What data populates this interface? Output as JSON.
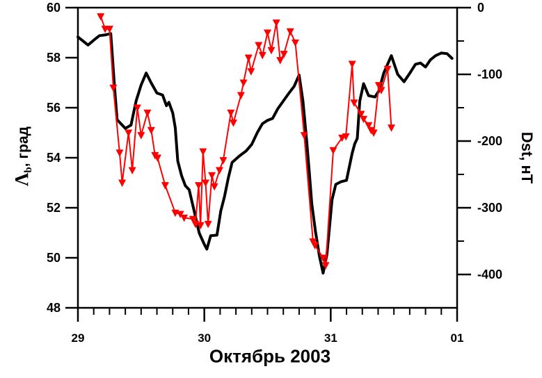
{
  "figure": {
    "xlabel": "Октябрь 2003",
    "left_axis": {
      "label_symbol": "Λ",
      "label_sub": "b",
      "label_rest": ", град",
      "full_label": "Λb, град"
    },
    "right_axis": {
      "label": "Dst, нТ"
    }
  },
  "chart_data": {
    "type": "line",
    "title": "",
    "xlabel": "Октябрь 2003",
    "grid": false,
    "legend": false,
    "x_axis": {
      "tick_labels": [
        "29",
        "30",
        "31",
        "01"
      ],
      "tick_positions": [
        29,
        30,
        31,
        32
      ],
      "range": [
        29,
        32
      ],
      "minor_tick_step": 0.125
    },
    "left_y_axis": {
      "label": "Λb, град",
      "range": [
        48,
        60
      ],
      "tick_labels": [
        "60",
        "58",
        "56",
        "54",
        "52",
        "50",
        "48"
      ],
      "ticks": [
        60,
        58,
        56,
        54,
        52,
        50,
        48
      ]
    },
    "right_y_axis": {
      "label": "Dst, нТ",
      "range": [
        -450,
        0
      ],
      "tick_labels": [
        "0",
        "-100",
        "-200",
        "-300",
        "-400"
      ],
      "ticks": [
        0,
        -100,
        -200,
        -300,
        -400
      ],
      "minor_ticks": [
        -50,
        -150,
        -250,
        -350
      ]
    },
    "series": [
      {
        "name": "Dst",
        "axis": "right",
        "color": "#000000",
        "line_width": 4,
        "marker": "none",
        "points": [
          [
            29.0,
            -44
          ],
          [
            29.04,
            -50
          ],
          [
            29.08,
            -56
          ],
          [
            29.13,
            -48
          ],
          [
            29.17,
            -42
          ],
          [
            29.21,
            -41
          ],
          [
            29.26,
            -39
          ],
          [
            29.29,
            -120
          ],
          [
            29.31,
            -168
          ],
          [
            29.375,
            -181
          ],
          [
            29.42,
            -176
          ],
          [
            29.46,
            -140
          ],
          [
            29.5,
            -116
          ],
          [
            29.54,
            -98
          ],
          [
            29.58,
            -113
          ],
          [
            29.625,
            -128
          ],
          [
            29.67,
            -131
          ],
          [
            29.7,
            -147
          ],
          [
            29.72,
            -142
          ],
          [
            29.75,
            -158
          ],
          [
            29.77,
            -180
          ],
          [
            29.79,
            -230
          ],
          [
            29.82,
            -252
          ],
          [
            29.85,
            -267
          ],
          [
            29.88,
            -273
          ],
          [
            29.92,
            -305
          ],
          [
            29.96,
            -338
          ],
          [
            30.0,
            -355
          ],
          [
            30.02,
            -362
          ],
          [
            30.05,
            -342
          ],
          [
            30.1,
            -341
          ],
          [
            30.13,
            -305
          ],
          [
            30.16,
            -283
          ],
          [
            30.19,
            -255
          ],
          [
            30.22,
            -232
          ],
          [
            30.28,
            -222
          ],
          [
            30.33,
            -215
          ],
          [
            30.375,
            -205
          ],
          [
            30.42,
            -187
          ],
          [
            30.46,
            -174
          ],
          [
            30.5,
            -169
          ],
          [
            30.54,
            -166
          ],
          [
            30.58,
            -152
          ],
          [
            30.625,
            -140
          ],
          [
            30.67,
            -128
          ],
          [
            30.71,
            -118
          ],
          [
            30.75,
            -101
          ],
          [
            30.78,
            -140
          ],
          [
            30.81,
            -200
          ],
          [
            30.83,
            -245
          ],
          [
            30.85,
            -294
          ],
          [
            30.88,
            -336
          ],
          [
            30.91,
            -372
          ],
          [
            30.94,
            -398
          ],
          [
            30.97,
            -370
          ],
          [
            30.99,
            -330
          ],
          [
            31.01,
            -288
          ],
          [
            31.04,
            -265
          ],
          [
            31.08,
            -261
          ],
          [
            31.125,
            -259
          ],
          [
            31.17,
            -218
          ],
          [
            31.19,
            -204
          ],
          [
            31.21,
            -196
          ],
          [
            31.23,
            -140
          ],
          [
            31.26,
            -114
          ],
          [
            31.3,
            -132
          ],
          [
            31.35,
            -134
          ],
          [
            31.38,
            -125
          ],
          [
            31.42,
            -98
          ],
          [
            31.48,
            -72
          ],
          [
            31.53,
            -100
          ],
          [
            31.58,
            -111
          ],
          [
            31.63,
            -97
          ],
          [
            31.67,
            -85
          ],
          [
            31.71,
            -83
          ],
          [
            31.75,
            -89
          ],
          [
            31.79,
            -78
          ],
          [
            31.83,
            -72
          ],
          [
            31.875,
            -68
          ],
          [
            31.92,
            -69
          ],
          [
            31.96,
            -76
          ]
        ]
      },
      {
        "name": "Λb",
        "axis": "left",
        "color": "#ff0000",
        "line_width": 2,
        "marker": "triangle-down",
        "points": [
          [
            29.18,
            59.65
          ],
          [
            29.215,
            59.15
          ],
          [
            29.25,
            59.15
          ],
          [
            29.28,
            56.8
          ],
          [
            29.33,
            54.2
          ],
          [
            29.35,
            53.0
          ],
          [
            29.4,
            55.0
          ],
          [
            29.43,
            53.5
          ],
          [
            29.47,
            56.0
          ],
          [
            29.5,
            54.9
          ],
          [
            29.55,
            55.8
          ],
          [
            29.58,
            55.1
          ],
          [
            29.61,
            54.1
          ],
          [
            29.63,
            54.0
          ],
          [
            29.69,
            52.9
          ],
          [
            29.77,
            51.8
          ],
          [
            29.81,
            51.75
          ],
          [
            29.84,
            51.6
          ],
          [
            29.91,
            51.55
          ],
          [
            29.93,
            51.35
          ],
          [
            29.955,
            52.9
          ],
          [
            29.97,
            51.3
          ],
          [
            29.99,
            54.25
          ],
          [
            30.01,
            53.0
          ],
          [
            30.03,
            51.35
          ],
          [
            30.06,
            53.3
          ],
          [
            30.08,
            52.85
          ],
          [
            30.12,
            53.5
          ],
          [
            30.15,
            53.9
          ],
          [
            30.21,
            55.8
          ],
          [
            30.23,
            55.4
          ],
          [
            30.29,
            56.5
          ],
          [
            30.31,
            57.0
          ],
          [
            30.35,
            58.0
          ],
          [
            30.37,
            57.45
          ],
          [
            30.43,
            58.5
          ],
          [
            30.46,
            58.1
          ],
          [
            30.5,
            59.0
          ],
          [
            30.53,
            58.3
          ],
          [
            30.57,
            59.4
          ],
          [
            30.6,
            57.9
          ],
          [
            30.63,
            58.15
          ],
          [
            30.68,
            59.05
          ],
          [
            30.72,
            58.6
          ],
          [
            30.79,
            54.9
          ],
          [
            30.86,
            50.65
          ],
          [
            30.875,
            50.5
          ],
          [
            30.94,
            50.0
          ],
          [
            30.96,
            49.7
          ],
          [
            31.02,
            54.3
          ],
          [
            31.09,
            54.8
          ],
          [
            31.12,
            54.85
          ],
          [
            31.17,
            57.75
          ],
          [
            31.185,
            56.2
          ],
          [
            31.24,
            55.75
          ],
          [
            31.26,
            55.55
          ],
          [
            31.3,
            55.3
          ],
          [
            31.32,
            55.1
          ],
          [
            31.34,
            55.0
          ],
          [
            31.38,
            56.9
          ],
          [
            31.4,
            56.7
          ],
          [
            31.45,
            57.55
          ],
          [
            31.48,
            55.2
          ]
        ]
      }
    ]
  }
}
